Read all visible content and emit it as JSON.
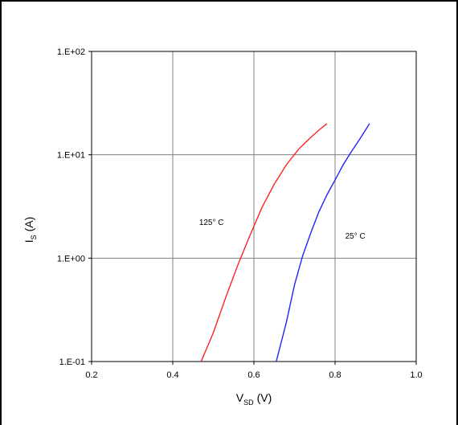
{
  "chart_data": {
    "type": "line",
    "title": "",
    "xlabel": {
      "main": "V",
      "sub": "SD",
      "unit": "(V)"
    },
    "ylabel": {
      "main": "I",
      "sub": "S",
      "unit": "(A)"
    },
    "xlim": [
      0.2,
      1.0
    ],
    "ylim": [
      0.1,
      100
    ],
    "yscale": "log",
    "grid": true,
    "legend": "none",
    "x_ticks": [
      "0.2",
      "0.4",
      "0.6",
      "0.8",
      "1.0"
    ],
    "y_ticks": [
      "1.E-01",
      "1.E+00",
      "1.E+01",
      "1.E+02"
    ],
    "series": [
      {
        "name": "125° C",
        "color": "#ff2222",
        "x": [
          0.47,
          0.5,
          0.53,
          0.56,
          0.59,
          0.62,
          0.65,
          0.68,
          0.71,
          0.74,
          0.76,
          0.78
        ],
        "y": [
          0.1,
          0.19,
          0.41,
          0.85,
          1.65,
          3.1,
          5.2,
          8.0,
          11.3,
          14.7,
          17.3,
          20.0
        ]
      },
      {
        "name": "25° C",
        "color": "#2222ff",
        "x": [
          0.655,
          0.68,
          0.7,
          0.72,
          0.74,
          0.76,
          0.78,
          0.8,
          0.82,
          0.84,
          0.86,
          0.885
        ],
        "y": [
          0.1,
          0.24,
          0.55,
          1.05,
          1.75,
          2.8,
          4.1,
          5.7,
          8.0,
          10.7,
          14.0,
          20.0
        ]
      }
    ],
    "annotations": [
      {
        "text": "125° C",
        "x": 0.465,
        "y": 2.1
      },
      {
        "text": "25° C",
        "x": 0.825,
        "y": 1.55
      }
    ]
  }
}
